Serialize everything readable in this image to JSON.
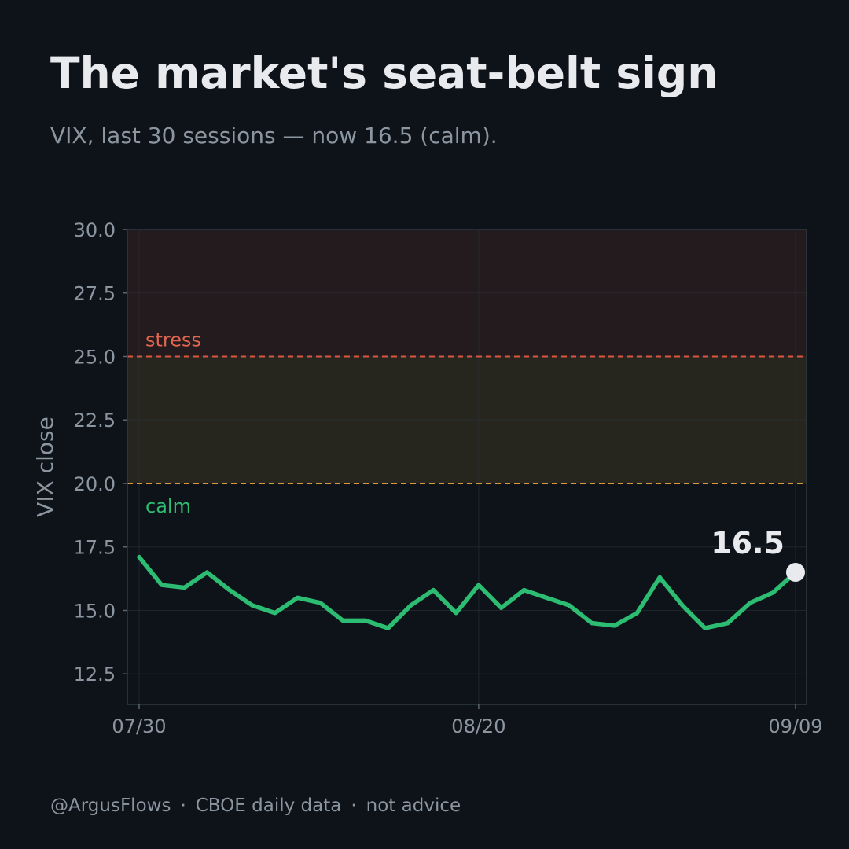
{
  "header": {
    "title": "The market's seat-belt sign",
    "subtitle": "VIX, last 30 sessions — now 16.5 (calm)."
  },
  "footer": {
    "handle": "@ArgusFlows",
    "source": "CBOE daily data",
    "disclaimer": "not advice",
    "separator": "·"
  },
  "chart_data": {
    "type": "line",
    "ylabel": "VIX close",
    "ylim": [
      11.3,
      30.0
    ],
    "yticks": [
      12.5,
      15.0,
      17.5,
      20.0,
      22.5,
      25.0,
      27.5,
      30.0
    ],
    "ytick_labels": [
      "12.5",
      "15.0",
      "17.5",
      "20.0",
      "22.5",
      "25.0",
      "27.5",
      "30.0"
    ],
    "x_session_range": [
      0,
      29
    ],
    "xticks": [
      {
        "session": 0,
        "label": "07/30"
      },
      {
        "session": 15,
        "label": "08/20"
      },
      {
        "session": 29,
        "label": "09/09"
      }
    ],
    "grid": true,
    "series": [
      {
        "color": "#2dbd72",
        "values": [
          17.1,
          16.0,
          15.9,
          16.5,
          15.8,
          15.2,
          14.9,
          15.5,
          15.3,
          14.6,
          14.6,
          14.3,
          15.2,
          15.8,
          14.9,
          16.0,
          15.1,
          15.8,
          15.5,
          15.2,
          14.5,
          14.4,
          14.9,
          16.3,
          15.2,
          14.3,
          14.5,
          15.3,
          15.7,
          16.5
        ]
      }
    ],
    "bands": [
      {
        "from": 20.0,
        "to": 25.0,
        "color": "#26261f"
      },
      {
        "from": 25.0,
        "to": 30.0,
        "color": "#231b1e"
      }
    ],
    "thresholds": [
      {
        "value": 25.0,
        "label": "stress",
        "color": "#d9553e",
        "label_color": "#e06650"
      },
      {
        "value": 20.0,
        "label": "calm",
        "color": "#d99a3a",
        "label_color": "#2dbd72"
      }
    ],
    "last_value": {
      "value": 16.5,
      "label": "16.5"
    }
  }
}
